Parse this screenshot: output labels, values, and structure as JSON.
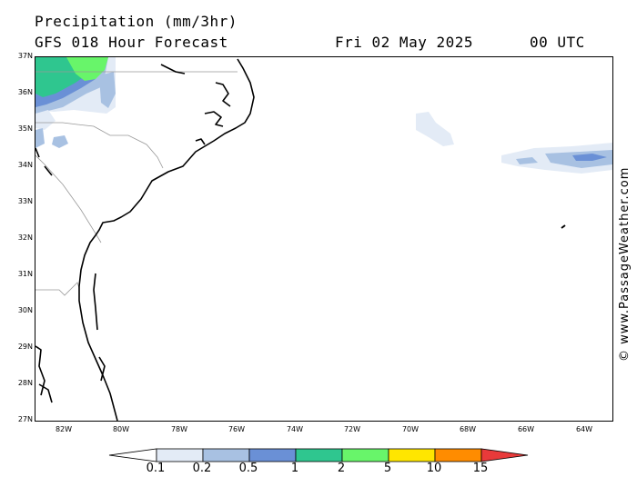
{
  "header": {
    "title": "Precipitation (mm/3hr)",
    "model": "GFS 018 Hour Forecast",
    "date": "Fri 02 May 2025",
    "time": "00 UTC"
  },
  "map": {
    "lat_labels": [
      "37N",
      "36N",
      "35N",
      "34N",
      "33N",
      "32N",
      "31N",
      "30N",
      "29N",
      "28N",
      "27N"
    ],
    "lon_labels": [
      "82W",
      "80W",
      "78W",
      "76W",
      "74W",
      "72W",
      "70W",
      "68W",
      "66W",
      "64W"
    ]
  },
  "legend": {
    "labels": [
      "0.1",
      "0.2",
      "0.5",
      "1",
      "2",
      "5",
      "10",
      "15"
    ],
    "colors": [
      "#ffffff",
      "#e3ebf6",
      "#a8c1e2",
      "#6a90d6",
      "#2fc68f",
      "#68f56a",
      "#ffe600",
      "#ff8c00",
      "#e83a3a"
    ]
  },
  "copyright": "© www.PassageWeather.com"
}
